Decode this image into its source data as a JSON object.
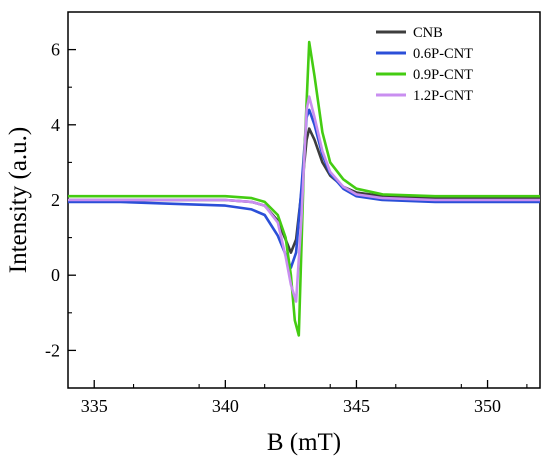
{
  "chart_data": {
    "type": "line",
    "xlabel": "B (mT)",
    "ylabel": "Intensity (a.u.)",
    "xlim": [
      334,
      352
    ],
    "ylim": [
      -3,
      7
    ],
    "xticks": [
      335,
      340,
      345,
      350
    ],
    "yticks": [
      -2,
      0,
      2,
      4,
      6
    ],
    "legend_position": "top-right",
    "grid": false,
    "series": [
      {
        "name": "CNB",
        "color": "#3d3d3d",
        "x": [
          334,
          336,
          338,
          340,
          341,
          341.5,
          342,
          342.3,
          342.5,
          342.7,
          342.9,
          343.1,
          343.2,
          343.4,
          343.7,
          344,
          344.5,
          345,
          346,
          348,
          350,
          352
        ],
        "y": [
          2.0,
          2.0,
          2.0,
          2.0,
          1.95,
          1.85,
          1.45,
          0.95,
          0.6,
          0.95,
          2.2,
          3.6,
          3.9,
          3.6,
          3.0,
          2.65,
          2.35,
          2.2,
          2.1,
          2.05,
          2.05,
          2.05
        ]
      },
      {
        "name": "0.6P-CNT",
        "color": "#2b4fd8",
        "x": [
          334,
          336,
          338,
          340,
          341,
          341.5,
          342,
          342.3,
          342.5,
          342.7,
          342.9,
          343.1,
          343.2,
          343.4,
          343.7,
          344,
          344.5,
          345,
          346,
          348,
          350,
          352
        ],
        "y": [
          1.95,
          1.95,
          1.9,
          1.85,
          1.75,
          1.6,
          1.05,
          0.55,
          0.2,
          0.6,
          2.3,
          4.2,
          4.4,
          4.0,
          3.2,
          2.7,
          2.3,
          2.1,
          2.0,
          1.95,
          1.95,
          1.95
        ]
      },
      {
        "name": "0.9P-CNT",
        "color": "#44cc12",
        "x": [
          334,
          336,
          338,
          340,
          341,
          341.5,
          342,
          342.3,
          342.5,
          342.65,
          342.8,
          343,
          343.2,
          343.4,
          343.7,
          344,
          344.5,
          345,
          346,
          348,
          350,
          352
        ],
        "y": [
          2.1,
          2.1,
          2.1,
          2.1,
          2.05,
          1.95,
          1.6,
          1.0,
          0.0,
          -1.2,
          -1.6,
          3.0,
          6.2,
          5.3,
          3.8,
          3.0,
          2.55,
          2.3,
          2.15,
          2.1,
          2.1,
          2.1
        ]
      },
      {
        "name": "1.2P-CNT",
        "color": "#c98ef0",
        "x": [
          334,
          336,
          338,
          340,
          341,
          341.5,
          342,
          342.3,
          342.5,
          342.7,
          342.9,
          343.1,
          343.2,
          343.4,
          343.7,
          344,
          344.5,
          345,
          346,
          348,
          350,
          352
        ],
        "y": [
          2.0,
          2.0,
          2.0,
          2.0,
          1.95,
          1.85,
          1.4,
          0.5,
          -0.25,
          -0.7,
          1.5,
          4.4,
          4.75,
          4.2,
          3.3,
          2.75,
          2.35,
          2.15,
          2.05,
          2.0,
          2.0,
          2.0
        ]
      }
    ]
  }
}
